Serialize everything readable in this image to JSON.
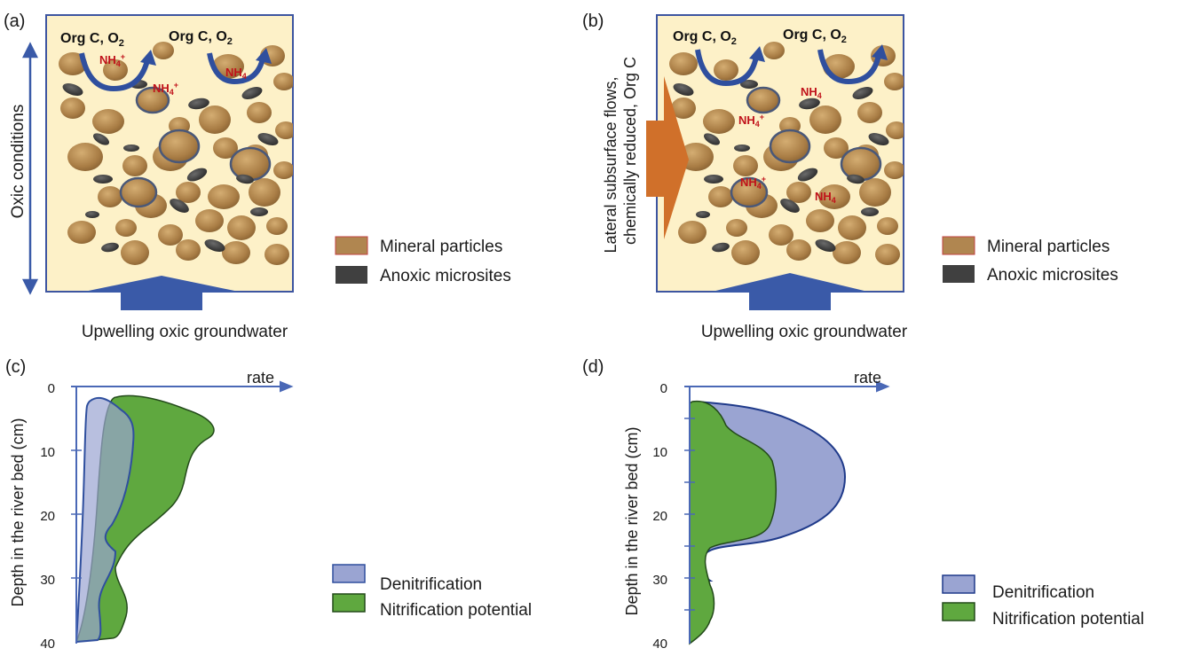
{
  "colors": {
    "box_fill": "#fdf1c8",
    "box_stroke": "#3d55a0",
    "arrow_blue": "#3a5aa8",
    "lateral_arrow": "#d0702a",
    "mineral_fill": "#b08650",
    "anoxic_fill": "#404040",
    "nh4_red": "#c0121a",
    "denitrification_fill": "#9aa4d2",
    "nitrification_fill": "#5fa83f",
    "axis_blue": "#4a68b6"
  },
  "panel_a": {
    "label": "(a)",
    "org_c_1": "Org C, O",
    "org_c_2": "Org C, O",
    "o2_sub": "2",
    "nh4_base": "NH",
    "nh4_sub": "4",
    "nh4_sup": "+",
    "side_label": "Oxic conditions",
    "bottom_label": "Upwelling oxic groundwater",
    "legend": [
      "Mineral particles",
      "Anoxic microsites"
    ]
  },
  "panel_b": {
    "label": "(b)",
    "org_c_1": "Org C, O",
    "org_c_2": "Org C, O",
    "o2_sub": "2",
    "nh4_base": "NH",
    "nh4_sub": "4",
    "nh4_sup": "+",
    "side_label_1": "Lateral subsurface flows,",
    "side_label_2": "chemically reduced, Org C",
    "bottom_label": "Upwelling oxic groundwater",
    "legend": [
      "Mineral particles",
      "Anoxic microsites"
    ]
  },
  "panel_c": {
    "label": "(c)",
    "x_axis_label": "rate",
    "y_axis_label": "Depth in the river bed (cm)",
    "y_ticks": [
      "0",
      "10",
      "20",
      "30",
      "40"
    ],
    "legend": [
      "Denitrification",
      "Nitrification potential"
    ]
  },
  "panel_d": {
    "label": "(d)",
    "x_axis_label": "rate",
    "y_axis_label": "Depth in the river bed (cm)",
    "y_ticks": [
      "0",
      "10",
      "20",
      "30",
      "40"
    ],
    "legend": [
      "Denitrification",
      "Nitrification potential"
    ]
  }
}
